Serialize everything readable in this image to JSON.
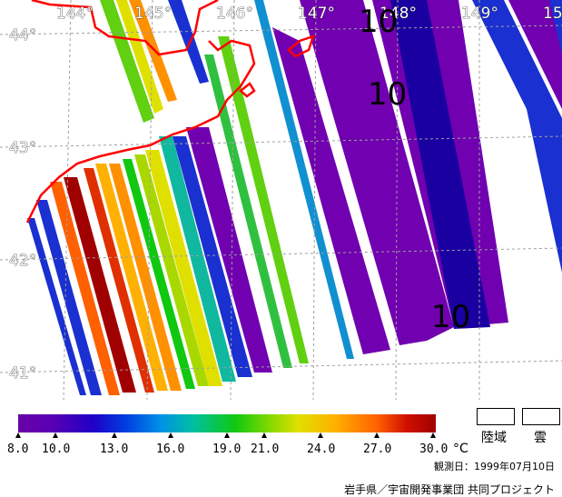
{
  "map": {
    "longitude_labels": [
      "144°",
      "145°",
      "146°",
      "147°",
      "148°",
      "149°",
      "15"
    ],
    "latitude_labels": [
      "44°",
      "43°",
      "42°",
      "41°"
    ],
    "contour_labels": [
      "10",
      "10",
      "10"
    ],
    "colors": {
      "coastline": "#ff0000",
      "grid": "#a0a0a0",
      "purple_band": "#7000b0",
      "deep_blue": "#1a00a0"
    }
  },
  "legend": {
    "ticks": [
      "8.0",
      "10.0",
      "13.0",
      "16.0",
      "19.0",
      "21.0",
      "24.0",
      "27.0",
      "30.0"
    ],
    "unit": "°C",
    "land_label": "陸域",
    "cloud_label": "雲",
    "observation_date": "観測日：1999年07月10日",
    "credit": "岩手県／宇宙開発事業団 共同プロジェクト"
  }
}
